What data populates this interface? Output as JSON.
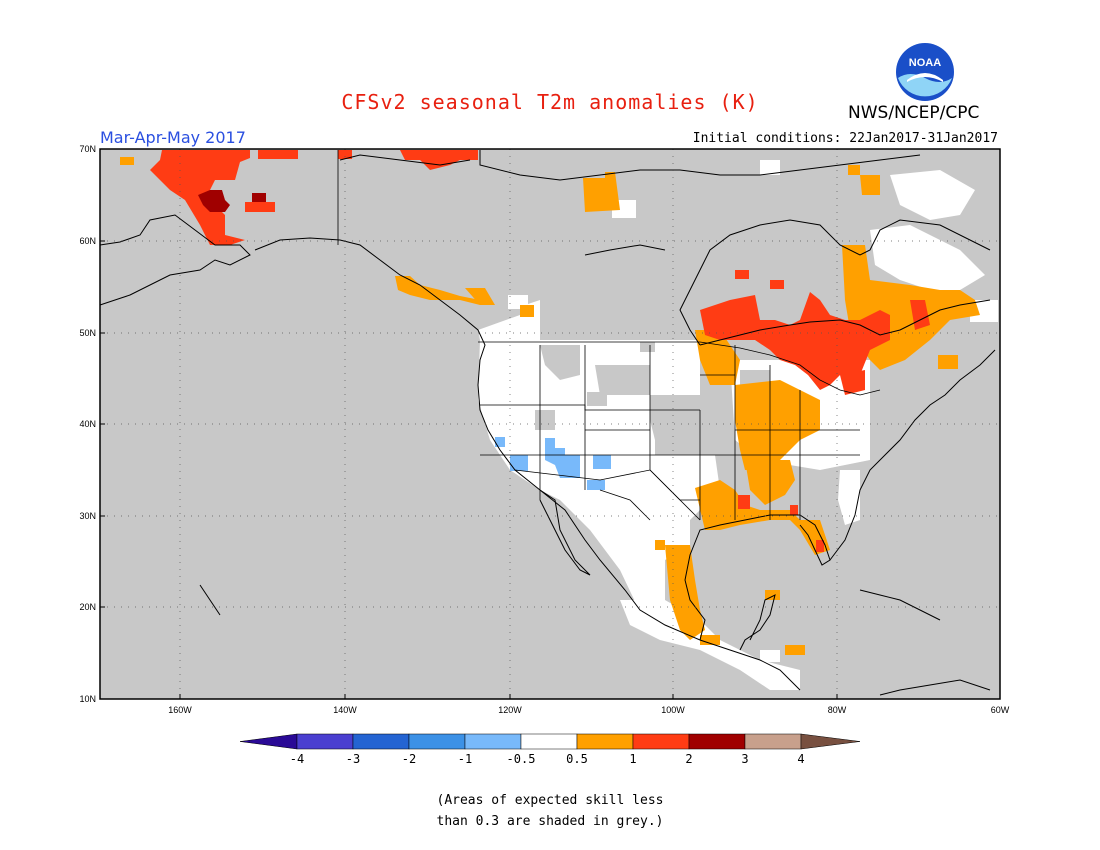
{
  "header": {
    "title": "CFSv2 seasonal T2m anomalies (K)",
    "period": "Mar-Apr-May 2017",
    "initial_conditions": "Initial conditions: 22Jan2017-31Jan2017",
    "agency": "NWS/NCEP/CPC",
    "logo_text": "NOAA"
  },
  "map": {
    "lat_labels": [
      "70N",
      "60N",
      "50N",
      "40N",
      "30N",
      "20N",
      "10N"
    ],
    "lon_labels": [
      "160W",
      "140W",
      "120W",
      "100W",
      "80W",
      "60W"
    ],
    "colors": {
      "no_skill_grey": "#c8c8c8",
      "ocean_grey": "#c8c8c8",
      "land_white": "#ffffff",
      "anom_0_5_1": "#ffa000",
      "anom_1_2": "#ff3c14",
      "anom_2_3": "#a00000",
      "anom_neg_0_5_1": "#78b9fa"
    }
  },
  "colorbar": {
    "labels": [
      "-4",
      "-3",
      "-2",
      "-1",
      "-0.5",
      "0.5",
      "1",
      "2",
      "3",
      "4"
    ],
    "colors": [
      "#2a0a96",
      "#4a3fd0",
      "#2464d2",
      "#3c91e6",
      "#78b9fa",
      "#ffffff",
      "#ffa000",
      "#ff3c14",
      "#a00000",
      "#c8a08c",
      "#785040"
    ]
  },
  "footnote": {
    "line1": "(Areas of expected skill less",
    "line2": "than 0.3 are shaded in grey.)"
  }
}
